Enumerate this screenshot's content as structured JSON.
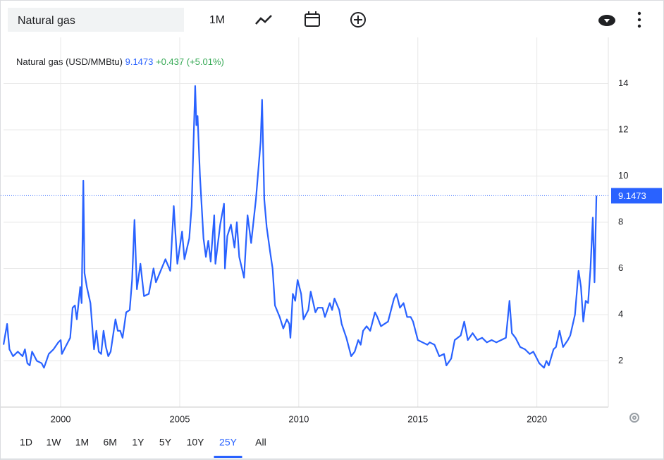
{
  "ui": {
    "search": "Natural gas",
    "interval": "1M",
    "ranges": [
      "1D",
      "1W",
      "1M",
      "6M",
      "1Y",
      "5Y",
      "10Y",
      "25Y",
      "All"
    ],
    "active_range": 7
  },
  "chart_data": {
    "type": "line",
    "title": "Natural gas (USD/MMBtu)",
    "change": "+0.437",
    "change_pct": "(+5.01%)",
    "color": "#2962ff",
    "up_color": "#34a853",
    "x": [
      1997.6,
      1997.75,
      1997.85,
      1998,
      1998.2,
      1998.4,
      1998.5,
      1998.6,
      1998.7,
      1998.8,
      1999,
      1999.2,
      1999.3,
      1999.5,
      1999.7,
      1999.9,
      2000,
      2000.05,
      2000.2,
      2000.4,
      2000.5,
      2000.6,
      2000.68,
      2000.75,
      2000.82,
      2000.88,
      2000.95,
      2001.0,
      2001.1,
      2001.25,
      2001.4,
      2001.5,
      2001.6,
      2001.7,
      2001.8,
      2001.9,
      2002.0,
      2002.1,
      2002.3,
      2002.4,
      2002.5,
      2002.6,
      2002.75,
      2002.9,
      2003.0,
      2003.1,
      2003.2,
      2003.35,
      2003.5,
      2003.7,
      2003.9,
      2004.0,
      2004.2,
      2004.4,
      2004.6,
      2004.75,
      2004.9,
      2005.1,
      2005.2,
      2005.4,
      2005.5,
      2005.65,
      2005.7,
      2005.75,
      2005.85,
      2006.0,
      2006.1,
      2006.2,
      2006.3,
      2006.45,
      2006.5,
      2006.7,
      2006.86,
      2006.9,
      2007.0,
      2007.15,
      2007.3,
      2007.4,
      2007.5,
      2007.7,
      2007.85,
      2008.0,
      2008.2,
      2008.4,
      2008.46,
      2008.55,
      2008.65,
      2008.8,
      2008.9,
      2009.0,
      2009.2,
      2009.35,
      2009.5,
      2009.6,
      2009.65,
      2009.75,
      2009.85,
      2009.95,
      2010.1,
      2010.2,
      2010.4,
      2010.5,
      2010.7,
      2010.8,
      2011.0,
      2011.1,
      2011.3,
      2011.4,
      2011.5,
      2011.7,
      2011.8,
      2012.0,
      2012.2,
      2012.35,
      2012.5,
      2012.6,
      2012.7,
      2012.85,
      2013.0,
      2013.2,
      2013.3,
      2013.45,
      2013.6,
      2013.75,
      2013.9,
      2014.0,
      2014.1,
      2014.25,
      2014.4,
      2014.55,
      2014.7,
      2014.8,
      2015.0,
      2015.2,
      2015.4,
      2015.5,
      2015.7,
      2015.9,
      2016.1,
      2016.2,
      2016.4,
      2016.55,
      2016.8,
      2016.95,
      2017.1,
      2017.3,
      2017.5,
      2017.7,
      2017.9,
      2018.1,
      2018.3,
      2018.5,
      2018.7,
      2018.85,
      2018.95,
      2019.1,
      2019.3,
      2019.5,
      2019.7,
      2019.85,
      2020.0,
      2020.1,
      2020.3,
      2020.4,
      2020.5,
      2020.7,
      2020.8,
      2020.95,
      2021.1,
      2021.3,
      2021.4,
      2021.6,
      2021.75,
      2021.85,
      2021.95,
      2022.05,
      2022.15,
      2022.25,
      2022.35,
      2022.42,
      2022.5
    ],
    "values": [
      2.7,
      3.6,
      2.5,
      2.2,
      2.4,
      2.2,
      2.5,
      1.9,
      1.8,
      2.4,
      2.0,
      1.9,
      1.7,
      2.3,
      2.5,
      2.8,
      2.9,
      2.3,
      2.6,
      3.0,
      4.3,
      4.4,
      3.8,
      4.5,
      5.2,
      4.5,
      9.8,
      5.8,
      5.2,
      4.5,
      2.5,
      3.3,
      2.4,
      2.3,
      3.3,
      2.6,
      2.2,
      2.4,
      3.8,
      3.3,
      3.3,
      3.0,
      4.1,
      4.2,
      5.5,
      8.1,
      5.1,
      6.2,
      4.8,
      4.9,
      6.0,
      5.4,
      5.9,
      6.4,
      5.9,
      8.7,
      6.2,
      7.6,
      6.4,
      7.3,
      8.7,
      13.9,
      12.2,
      12.6,
      10.0,
      7.3,
      6.5,
      7.2,
      6.3,
      8.3,
      6.2,
      7.9,
      8.8,
      6.0,
      7.4,
      7.9,
      6.9,
      8.0,
      6.5,
      5.6,
      8.3,
      7.1,
      9.0,
      11.5,
      13.3,
      9.0,
      7.8,
      6.7,
      6.0,
      4.4,
      3.9,
      3.4,
      3.8,
      3.6,
      3.0,
      4.9,
      4.6,
      5.5,
      4.9,
      3.8,
      4.2,
      5.0,
      4.1,
      4.3,
      4.3,
      3.9,
      4.5,
      4.2,
      4.7,
      4.2,
      3.6,
      3.0,
      2.2,
      2.4,
      2.9,
      2.7,
      3.3,
      3.5,
      3.3,
      4.1,
      3.9,
      3.5,
      3.6,
      3.7,
      4.3,
      4.7,
      4.9,
      4.3,
      4.5,
      3.9,
      3.9,
      3.7,
      2.9,
      2.8,
      2.7,
      2.8,
      2.7,
      2.2,
      2.3,
      1.8,
      2.1,
      2.9,
      3.1,
      3.7,
      2.9,
      3.2,
      2.9,
      3.0,
      2.8,
      2.9,
      2.8,
      2.9,
      3.0,
      4.6,
      3.2,
      3.0,
      2.6,
      2.5,
      2.3,
      2.4,
      2.1,
      1.9,
      1.7,
      2.0,
      1.8,
      2.5,
      2.6,
      3.3,
      2.6,
      2.9,
      3.1,
      4.0,
      5.9,
      5.2,
      3.7,
      4.6,
      4.5,
      6.0,
      8.2,
      5.4,
      9.1473
    ],
    "xlim": [
      1997.6,
      2023
    ],
    "ylim": [
      0,
      16
    ],
    "xticks": [
      2000,
      2005,
      2010,
      2015,
      2020
    ],
    "yticks": [
      2,
      4,
      6,
      8,
      10,
      12,
      14
    ],
    "grid": true
  }
}
